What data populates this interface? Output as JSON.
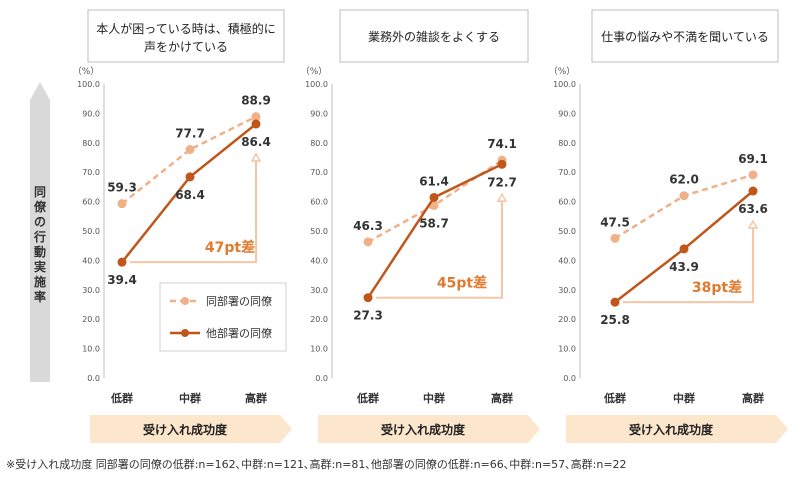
{
  "y_axis_title": "同僚の行動実施率",
  "x_axis_title": "受け入れ成功度",
  "unit": "（%）",
  "legend": {
    "same_dept": "同部署の同僚",
    "other_dept": "他部署の同僚"
  },
  "footnote": "※受け入れ成功度 同部署の同僚の低群:n=162､中群:n=121､高群:n=81､他部署の同僚の低群:n=66､中群:n=57､高群:n=22",
  "colors": {
    "same_dept": "#F0B088",
    "other_dept": "#C0561A",
    "diff_text": "#E07A2E",
    "arrow": "#F6C6A6",
    "banner": "#FCE6CC",
    "y_banner": "#D9D9D9"
  },
  "chart_data": [
    {
      "type": "line",
      "title": "本人が困っている時は、積極的に声をかけている",
      "title_lines": [
        "本人が困っている時は、積極的に",
        "声をかけている"
      ],
      "categories": [
        "低群",
        "中群",
        "高群"
      ],
      "series": [
        {
          "name": "同部署の同僚",
          "values": [
            59.3,
            77.7,
            88.9
          ],
          "style": "dashed"
        },
        {
          "name": "他部署の同僚",
          "values": [
            39.4,
            68.4,
            86.4
          ],
          "style": "solid"
        }
      ],
      "difference_label": "47pt差",
      "ylim": [
        0,
        100
      ],
      "yticks": [
        "0.0",
        "10.0",
        "20.0",
        "30.0",
        "40.0",
        "50.0",
        "60.0",
        "70.0",
        "80.0",
        "90.0",
        "100.0"
      ],
      "legend_position": "bottom-right"
    },
    {
      "type": "line",
      "title": "業務外の雑談をよくする",
      "title_lines": [
        "業務外の雑談をよくする"
      ],
      "categories": [
        "低群",
        "中群",
        "高群"
      ],
      "series": [
        {
          "name": "同部署の同僚",
          "values": [
            46.3,
            58.7,
            74.1
          ],
          "style": "dashed"
        },
        {
          "name": "他部署の同僚",
          "values": [
            27.3,
            61.4,
            72.7
          ],
          "style": "solid"
        }
      ],
      "difference_label": "45pt差",
      "ylim": [
        0,
        100
      ],
      "yticks": [
        "0.0",
        "10.0",
        "20.0",
        "30.0",
        "40.0",
        "50.0",
        "60.0",
        "70.0",
        "80.0",
        "90.0",
        "100.0"
      ]
    },
    {
      "type": "line",
      "title": "仕事の悩みや不満を聞いている",
      "title_lines": [
        "仕事の悩みや不満を聞いている"
      ],
      "categories": [
        "低群",
        "中群",
        "高群"
      ],
      "series": [
        {
          "name": "同部署の同僚",
          "values": [
            47.5,
            62.0,
            69.1
          ],
          "style": "dashed"
        },
        {
          "name": "他部署の同僚",
          "values": [
            25.8,
            43.9,
            63.6
          ],
          "style": "solid"
        }
      ],
      "difference_label": "38pt差",
      "ylim": [
        0,
        100
      ],
      "yticks": [
        "0.0",
        "10.0",
        "20.0",
        "30.0",
        "40.0",
        "50.0",
        "60.0",
        "70.0",
        "80.0",
        "90.0",
        "100.0"
      ]
    }
  ]
}
